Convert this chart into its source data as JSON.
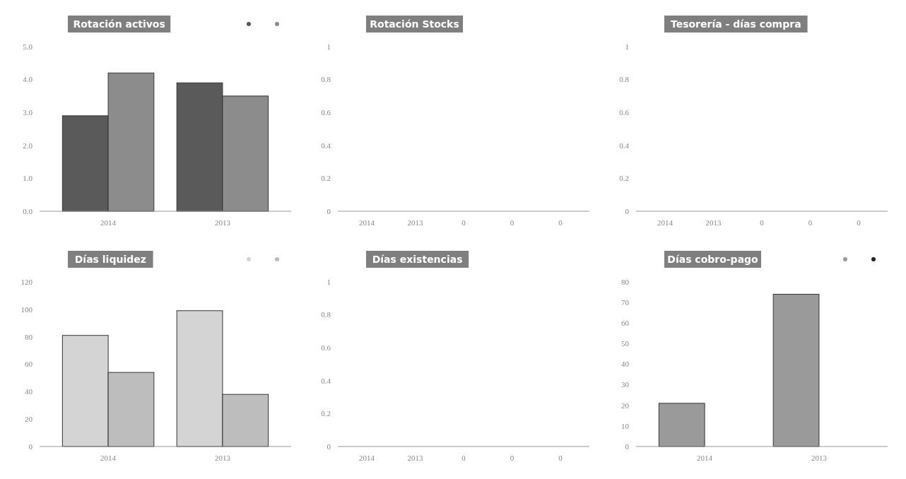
{
  "chart_data": [
    {
      "type": "bar",
      "title": "Rotación activos",
      "categories": [
        "2014",
        "2013"
      ],
      "series": [
        {
          "color": "#5a5a5a",
          "values": [
            2.9,
            3.9
          ]
        },
        {
          "color": "#8c8c8c",
          "values": [
            4.2,
            3.5
          ]
        }
      ],
      "ylim": [
        0,
        5
      ],
      "yticks": [
        {
          "value": 0,
          "label": "0.0"
        },
        {
          "value": 1,
          "label": "1.0"
        },
        {
          "value": 2,
          "label": "2.0"
        },
        {
          "value": 3,
          "label": "3.0"
        },
        {
          "value": 4,
          "label": "4.0"
        },
        {
          "value": 5,
          "label": "5.0"
        }
      ]
    },
    {
      "type": "bar",
      "title": "Rotación Stocks",
      "categories": [
        "2014",
        "2013",
        "0",
        "0",
        "0"
      ],
      "values": [
        null,
        null,
        null,
        null,
        null
      ],
      "ylim": [
        0,
        1
      ],
      "yticks": [
        0,
        0.2,
        0.4,
        0.6,
        0.8,
        1
      ]
    },
    {
      "type": "bar",
      "title": "Tesorería - días compra",
      "categories": [
        "2014",
        "2013",
        "0",
        "0",
        "0"
      ],
      "values": [
        null,
        null,
        null,
        null,
        null
      ],
      "ylim": [
        0,
        1
      ],
      "yticks": [
        0,
        0.2,
        0.4,
        0.6,
        0.8,
        1
      ]
    },
    {
      "type": "bar",
      "title": "Días liquidez",
      "categories": [
        "2014",
        "2013"
      ],
      "series": [
        {
          "color": "#d4d4d4",
          "values": [
            81,
            99
          ]
        },
        {
          "color": "#bdbdbd",
          "values": [
            54,
            38
          ]
        }
      ],
      "ylim": [
        0,
        120
      ],
      "yticks": [
        0,
        20,
        40,
        60,
        80,
        100,
        120
      ]
    },
    {
      "type": "bar",
      "title": "Días existencias",
      "categories": [
        "2014",
        "2013",
        "0",
        "0",
        "0"
      ],
      "values": [
        null,
        null,
        null,
        null,
        null
      ],
      "ylim": [
        0,
        1
      ],
      "yticks": [
        0,
        0.2,
        0.4,
        0.6,
        0.8,
        1
      ]
    },
    {
      "type": "bar",
      "title": "Días cobro-pago",
      "categories": [
        "2014",
        "2013"
      ],
      "series": [
        {
          "color": "#9a9a9a",
          "values": [
            21,
            74
          ]
        },
        {
          "color": "#222222",
          "values": [
            null,
            null
          ]
        }
      ],
      "ylim": [
        0,
        80
      ],
      "yticks": [
        0,
        10,
        20,
        30,
        40,
        50,
        60,
        70,
        80
      ]
    }
  ]
}
